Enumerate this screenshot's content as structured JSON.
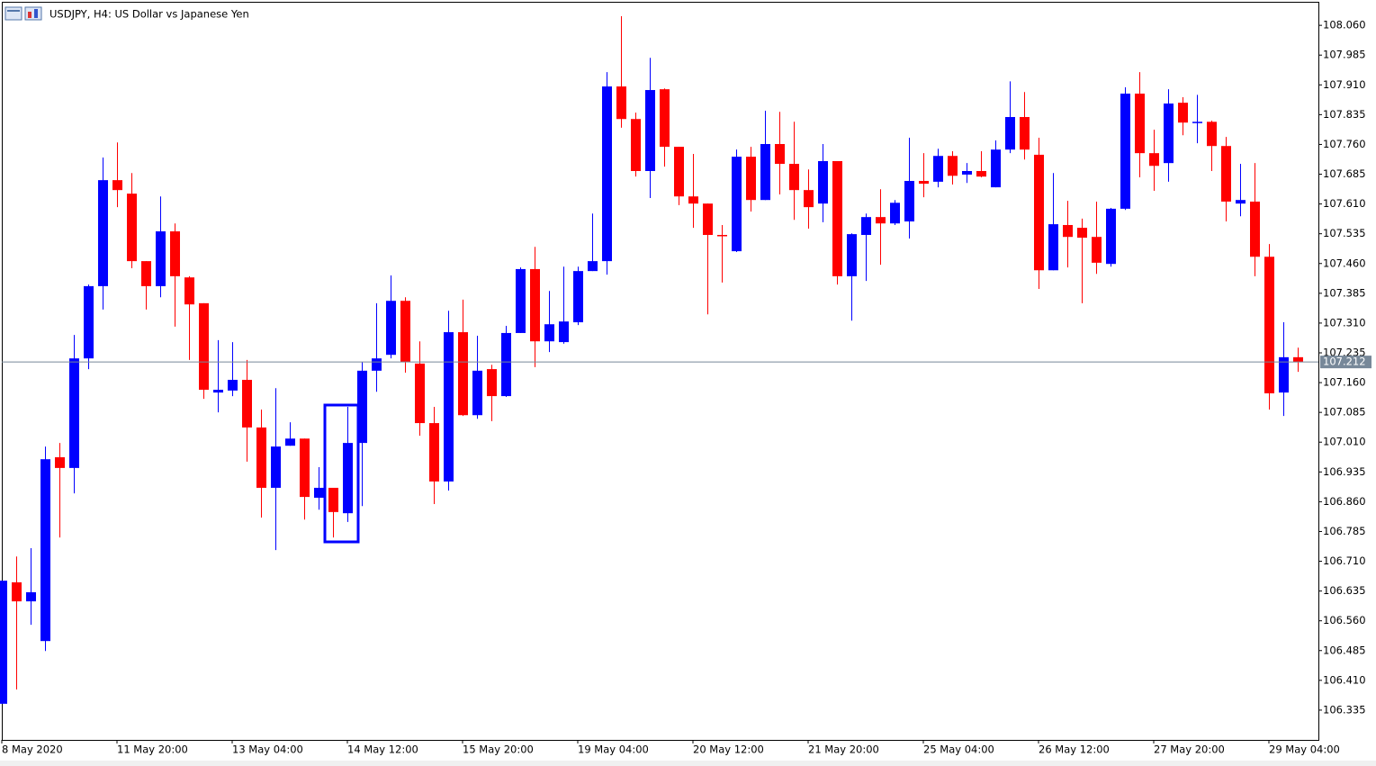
{
  "chart_data": {
    "type": "candlestick",
    "title": "USDJPY, H4:  US Dollar vs Japanese Yen",
    "up_color": "#0000ff",
    "down_color": "#ff0000",
    "categories": [
      "8 May 2020",
      null,
      null,
      null,
      null,
      null,
      null,
      null,
      "11 May 20:00",
      null,
      null,
      null,
      null,
      null,
      null,
      null,
      "13 May 04:00",
      null,
      null,
      null,
      null,
      null,
      null,
      null,
      "14 May 12:00",
      null,
      null,
      null,
      null,
      null,
      null,
      null,
      "15 May 20:00",
      null,
      null,
      null,
      null,
      null,
      null,
      null,
      "19 May 04:00",
      null,
      null,
      null,
      null,
      null,
      null,
      null,
      "20 May 12:00",
      null,
      null,
      null,
      null,
      null,
      null,
      null,
      "21 May 20:00",
      null,
      null,
      null,
      null,
      null,
      null,
      null,
      "25 May 04:00",
      null,
      null,
      null,
      null,
      null,
      null,
      null,
      "26 May 12:00",
      null,
      null,
      null,
      null,
      null,
      null,
      null,
      "27 May 20:00",
      null,
      null,
      null,
      null,
      null,
      null,
      null,
      "29 May 04:00",
      null,
      null
    ],
    "open": [
      106.351,
      106.657,
      106.609,
      106.509,
      106.972,
      106.945,
      107.221,
      107.403,
      107.67,
      107.636,
      107.466,
      107.403,
      107.541,
      107.425,
      107.36,
      107.135,
      107.14,
      107.167,
      107.047,
      106.895,
      107.001,
      107.019,
      106.87,
      106.895,
      106.831,
      107.008,
      107.19,
      107.23,
      107.366,
      107.208,
      107.058,
      106.911,
      107.287,
      107.078,
      107.194,
      107.126,
      107.285,
      107.446,
      107.264,
      107.262,
      107.312,
      107.441,
      107.466,
      107.906,
      107.824,
      107.693,
      107.899,
      107.754,
      107.629,
      107.611,
      107.532,
      107.491,
      107.729,
      107.62,
      107.761,
      107.711,
      107.645,
      107.611,
      107.718,
      107.428,
      107.532,
      107.577,
      107.561,
      107.566,
      107.668,
      107.666,
      107.731,
      107.684,
      107.693,
      107.652,
      107.747,
      107.829,
      107.734,
      107.443,
      107.557,
      107.55,
      107.527,
      107.459,
      107.598,
      107.888,
      107.738,
      107.713,
      107.865,
      107.815,
      107.817,
      107.756,
      107.611,
      107.616,
      107.477,
      107.135,
      107.224
    ],
    "high": [
      106.661,
      106.722,
      106.743,
      106.999,
      107.008,
      107.28,
      107.407,
      107.727,
      107.765,
      107.688,
      107.466,
      107.629,
      107.561,
      107.428,
      107.36,
      107.267,
      107.262,
      107.217,
      107.092,
      107.146,
      107.06,
      107.019,
      106.947,
      106.895,
      107.099,
      107.212,
      107.36,
      107.43,
      107.375,
      107.264,
      107.099,
      107.341,
      107.369,
      107.278,
      107.205,
      107.303,
      107.45,
      107.502,
      107.391,
      107.452,
      107.452,
      107.586,
      107.942,
      108.083,
      107.84,
      107.978,
      107.901,
      107.754,
      107.736,
      107.611,
      107.557,
      107.747,
      107.754,
      107.845,
      107.842,
      107.817,
      107.697,
      107.761,
      107.718,
      107.536,
      107.586,
      107.647,
      107.62,
      107.777,
      107.738,
      107.749,
      107.743,
      107.713,
      107.743,
      107.77,
      107.919,
      107.892,
      107.777,
      107.688,
      107.618,
      107.573,
      107.616,
      107.6,
      107.904,
      107.942,
      107.797,
      107.899,
      107.879,
      107.885,
      107.82,
      107.779,
      107.711,
      107.713,
      107.509,
      107.312,
      107.248
    ],
    "low": [
      106.351,
      106.387,
      106.55,
      106.484,
      106.77,
      106.881,
      107.194,
      107.344,
      107.602,
      107.448,
      107.344,
      107.375,
      107.301,
      107.217,
      107.119,
      107.085,
      107.126,
      106.961,
      106.82,
      106.738,
      107.001,
      106.815,
      106.84,
      106.77,
      106.809,
      106.849,
      107.137,
      107.221,
      107.185,
      107.026,
      106.854,
      106.888,
      107.076,
      107.069,
      107.063,
      107.124,
      107.285,
      107.199,
      107.237,
      107.258,
      107.305,
      107.441,
      107.432,
      107.802,
      107.679,
      107.625,
      107.704,
      107.607,
      107.55,
      107.332,
      107.412,
      107.489,
      107.591,
      107.62,
      107.634,
      107.57,
      107.548,
      107.564,
      107.407,
      107.316,
      107.416,
      107.457,
      107.557,
      107.523,
      107.627,
      107.652,
      107.659,
      107.663,
      107.677,
      107.652,
      107.738,
      107.722,
      107.396,
      107.443,
      107.45,
      107.36,
      107.434,
      107.452,
      107.595,
      107.677,
      107.643,
      107.666,
      107.783,
      107.763,
      107.693,
      107.566,
      107.579,
      107.428,
      107.092,
      107.076,
      107.187
    ],
    "close": [
      106.661,
      106.609,
      106.632,
      106.967,
      106.945,
      107.221,
      107.403,
      107.67,
      107.645,
      107.466,
      107.403,
      107.541,
      107.428,
      107.357,
      107.142,
      107.142,
      107.167,
      107.047,
      106.895,
      106.999,
      107.019,
      106.872,
      106.895,
      106.834,
      107.008,
      107.19,
      107.221,
      107.366,
      107.212,
      107.058,
      106.911,
      107.287,
      107.078,
      107.19,
      107.126,
      107.285,
      107.446,
      107.264,
      107.307,
      107.314,
      107.441,
      107.466,
      107.906,
      107.824,
      107.693,
      107.897,
      107.754,
      107.629,
      107.611,
      107.532,
      107.53,
      107.729,
      107.62,
      107.761,
      107.711,
      107.645,
      107.602,
      107.718,
      107.428,
      107.534,
      107.577,
      107.561,
      107.613,
      107.668,
      107.661,
      107.731,
      107.681,
      107.693,
      107.679,
      107.747,
      107.829,
      107.747,
      107.443,
      107.559,
      107.527,
      107.525,
      107.462,
      107.598,
      107.888,
      107.738,
      107.706,
      107.863,
      107.815,
      107.817,
      107.756,
      107.616,
      107.62,
      107.477,
      107.133,
      107.224,
      107.212
    ],
    "ylim": [
      106.26,
      108.117
    ],
    "yticks": [
      {
        "value": 108.06,
        "label": "108.060"
      },
      107.985,
      {
        "value": 107.91,
        "label": "107.910"
      },
      107.835,
      {
        "value": 107.76,
        "label": "107.760"
      },
      107.685,
      {
        "value": 107.61,
        "label": "107.610"
      },
      107.535,
      {
        "value": 107.46,
        "label": "107.460"
      },
      107.385,
      {
        "value": 107.31,
        "label": "107.310"
      },
      107.235,
      {
        "value": 107.16,
        "label": "107.160"
      },
      107.085,
      {
        "value": 107.01,
        "label": "107.010"
      },
      106.935,
      {
        "value": 106.86,
        "label": "106.860"
      },
      106.785,
      {
        "value": 106.71,
        "label": "106.710"
      },
      106.635,
      {
        "value": 106.56,
        "label": "106.560"
      },
      106.485,
      {
        "value": 106.41,
        "label": "106.410"
      },
      106.335
    ],
    "last_price": 107.212,
    "grid": false
  }
}
